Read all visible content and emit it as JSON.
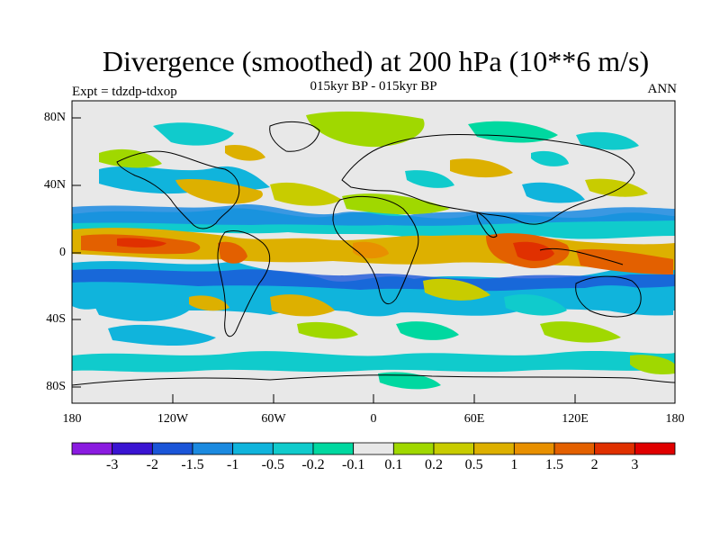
{
  "figure": {
    "title": "Divergence (smoothed) at 200 hPa (10**6 m/s)",
    "subtitle": "015kyr BP - 015kyr BP",
    "experiment": "Expt = tdzdp-tdxop",
    "season": "ANN"
  },
  "axes": {
    "lat_labels": [
      "80N",
      "40N",
      "0",
      "40S",
      "80S"
    ],
    "lon_labels": [
      "180",
      "120W",
      "60W",
      "0",
      "60E",
      "120E",
      "180"
    ]
  },
  "colorbar": {
    "colors": [
      "#8a1be0",
      "#3a14d2",
      "#1a55d8",
      "#1b8ae0",
      "#10b4dc",
      "#10cbcc",
      "#00d8a0",
      "#e8e8e8",
      "#a0d800",
      "#c8cc00",
      "#ddb000",
      "#e89000",
      "#e36000",
      "#e03000",
      "#e00000"
    ],
    "labels": [
      "-3",
      "-2",
      "-1.5",
      "-1",
      "-0.5",
      "-0.2",
      "-0.1",
      "0.1",
      "0.2",
      "0.5",
      "1",
      "1.5",
      "2",
      "3"
    ]
  }
}
